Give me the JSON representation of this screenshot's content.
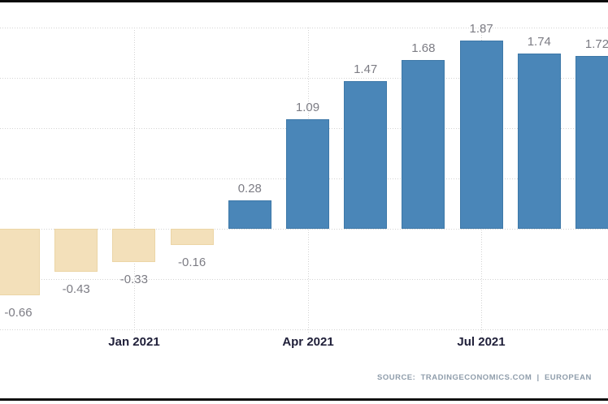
{
  "chart_data": {
    "type": "bar",
    "title": "",
    "values": [
      -0.66,
      -0.43,
      -0.33,
      -0.16,
      0.28,
      1.09,
      1.47,
      1.68,
      1.87,
      1.74,
      1.72
    ],
    "bar_value_labels": [
      "-0.66",
      "-0.43",
      "-0.33",
      "-0.16",
      "0.28",
      "1.09",
      "1.47",
      "1.68",
      "1.87",
      "1.74",
      "1.72"
    ],
    "x_ticks": [
      {
        "label": "Jan 2021",
        "bar_index": 2
      },
      {
        "label": "Apr 2021",
        "bar_index": 5
      },
      {
        "label": "Jul 2021",
        "bar_index": 8
      }
    ],
    "ylim": [
      -1.0,
      2.0
    ],
    "gridline_step": 0.5,
    "grid": true,
    "positive_color": "#4a86b8",
    "negative_color": "#f3e0ba",
    "value_label_color": "#7c7c84",
    "tick_label_color": "#20203a",
    "source_text": "SOURCE:  TRADINGECONOMICS.COM  |  EUROPEAN"
  }
}
